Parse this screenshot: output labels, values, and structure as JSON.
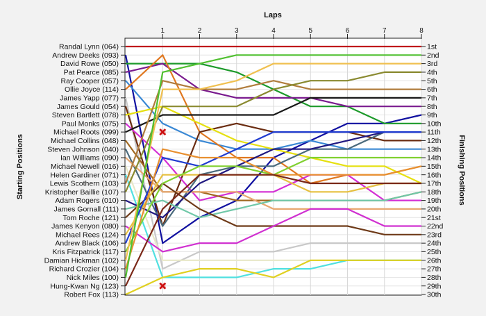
{
  "chart_data": {
    "type": "line",
    "title": "",
    "xlabel": "Laps",
    "ylabel_left": "Starting Positions",
    "ylabel_right": "Finishing Positions",
    "x": [
      0,
      1,
      2,
      3,
      4,
      5,
      6,
      7,
      8
    ],
    "x_tick_labels": [
      "1",
      "2",
      "3",
      "4",
      "5",
      "6",
      "7",
      "8"
    ],
    "ylim": [
      1,
      30
    ],
    "y_inverted": true,
    "grid": true,
    "starting_labels": [
      "Randal Lynn (064)",
      "Andrew Deeks (093)",
      "David Rowe (050)",
      "Pat Pearce (085)",
      "Ray Cooper (057)",
      "Ollie Joyce (114)",
      "James Yapp (077)",
      "James Gould (054)",
      "Steven Bartlett (078)",
      "Paul Monks (075)",
      "Michael Roots (099)",
      "Michael Collins (048)",
      "Steven Johnson (040)",
      "Ian Williams (090)",
      "Michael Newell (016)",
      "Helen Gardiner (071)",
      "Lewis Scothern (103)",
      "Kristopher Baillie (107)",
      "Adam Rogers (010)",
      "James Gornall (111)",
      "Tom Roche (121)",
      "James Kenyon (080)",
      "Michael Rees (124)",
      "Andrew Black (106)",
      "Kris Fitzpatrick (117)",
      "Damian Hickman (102)",
      "Richard Crozier (104)",
      "Nick Miles (100)",
      "Hung-Kwan Ng (123)",
      "Robert Fox (113)"
    ],
    "finishing_labels": [
      "1st",
      "2nd",
      "3rd",
      "4th",
      "5th",
      "6th",
      "7th",
      "8th",
      "9th",
      "10th",
      "11th",
      "12th",
      "13th",
      "14th",
      "15th",
      "16th",
      "17th",
      "18th",
      "19th",
      "20th",
      "21st",
      "22nd",
      "23rd",
      "24th",
      "25th",
      "26th",
      "27th",
      "28th",
      "29th",
      "30th"
    ],
    "series": [
      {
        "start": 1,
        "color": "#c0141c",
        "positions": [
          1,
          1,
          1,
          1,
          1,
          1,
          1,
          1,
          1
        ]
      },
      {
        "start": 2,
        "color": "#1010a0",
        "positions": [
          2,
          24,
          21,
          19,
          14,
          12,
          10,
          10,
          9
        ]
      },
      {
        "start": 3,
        "color": "#1c9a2a",
        "positions": [
          3,
          3,
          3,
          4,
          6,
          8,
          8,
          10,
          10
        ]
      },
      {
        "start": 4,
        "color": "#7a1a8e",
        "positions": [
          4,
          3,
          6,
          7,
          7,
          7,
          8,
          8,
          8
        ]
      },
      {
        "start": 5,
        "color": "#3a88d4",
        "positions": [
          5,
          10,
          12,
          13,
          13,
          12,
          13,
          13,
          13
        ]
      },
      {
        "start": 6,
        "color": "#e07820",
        "positions": [
          6,
          2,
          11,
          14,
          14,
          17,
          16,
          16,
          15
        ]
      },
      {
        "start": 7,
        "color": "#c8c8c8",
        "positions": [
          7,
          27,
          25,
          25,
          25,
          24,
          24,
          24,
          24
        ]
      },
      {
        "start": 8,
        "color": "#6a2c10",
        "positions": [
          8,
          22,
          11,
          10,
          11,
          11,
          11,
          12,
          12
        ]
      },
      {
        "start": 9,
        "color": "#e6e010",
        "positions": [
          9,
          8,
          10,
          12,
          13,
          14,
          15,
          15,
          17
        ]
      },
      {
        "start": 10,
        "color": "#d42ed4",
        "positions": [
          10,
          14,
          19,
          18,
          18,
          16,
          16,
          19,
          19
        ]
      },
      {
        "start": 11,
        "color": "#181818",
        "positions": [
          11,
          9,
          9,
          9,
          9,
          7,
          7,
          7,
          7
        ]
      },
      {
        "start": 12,
        "color": "#a06820",
        "positions": [
          12,
          18,
          18,
          19,
          19,
          19,
          19,
          19,
          18
        ]
      },
      {
        "start": 13,
        "color": "#4a6a7c",
        "positions": [
          13,
          22,
          16,
          15,
          15,
          13,
          13,
          11,
          11
        ]
      },
      {
        "start": 14,
        "color": "#e8a870",
        "positions": [
          14,
          18,
          18,
          18,
          20,
          20,
          20,
          20,
          20
        ]
      },
      {
        "start": 15,
        "color": "#e8e8c8",
        "positions": [
          15,
          26,
          26,
          26,
          26,
          26,
          26,
          26,
          26
        ]
      },
      {
        "start": 16,
        "color": "#50e0e0",
        "positions": [
          16,
          28,
          28,
          28,
          27,
          27,
          26,
          26,
          26
        ]
      },
      {
        "start": 17,
        "color": "#b07c3c",
        "positions": [
          17,
          5,
          6,
          6,
          5,
          6,
          6,
          6,
          6
        ]
      },
      {
        "start": 18,
        "color": "#8a8a30",
        "positions": [
          18,
          8,
          8,
          8,
          6,
          5,
          5,
          4,
          4
        ]
      },
      {
        "start": 19,
        "color": "#201880",
        "positions": [
          19,
          21,
          17,
          15,
          13,
          13,
          12,
          11,
          11
        ]
      },
      {
        "start": 20,
        "color": "#70c8a8",
        "positions": [
          20,
          19,
          21,
          20,
          19,
          19,
          19,
          19,
          18
        ]
      },
      {
        "start": 21,
        "color": "#6e3a18",
        "positions": [
          21,
          17,
          20,
          22,
          22,
          22,
          22,
          23,
          23
        ]
      },
      {
        "start": 22,
        "color": "#d030d0",
        "positions": [
          22,
          25,
          24,
          24,
          22,
          20,
          20,
          22,
          22
        ]
      },
      {
        "start": 23,
        "color": "#e6c040",
        "positions": [
          23,
          16,
          16,
          16,
          16,
          18,
          18,
          17,
          17
        ]
      },
      {
        "start": 24,
        "color": "#203cd0",
        "positions": [
          24,
          14,
          15,
          13,
          11,
          11,
          11,
          11,
          11
        ]
      },
      {
        "start": 25,
        "color": "#80d030",
        "positions": [
          25,
          17,
          15,
          15,
          16,
          14,
          14,
          14,
          14
        ]
      },
      {
        "start": 26,
        "color": "#f0c050",
        "positions": [
          26,
          6,
          6,
          5,
          3,
          3,
          3,
          3,
          3
        ]
      },
      {
        "start": 27,
        "color": "#e89030",
        "positions": [
          27,
          13,
          14,
          14,
          16,
          16,
          16,
          16,
          15
        ]
      },
      {
        "start": 28,
        "color": "#50c030",
        "positions": [
          28,
          4,
          3,
          2,
          2,
          2,
          2,
          2,
          2
        ]
      },
      {
        "start": 29,
        "color": "#7a2818",
        "positions": [
          29,
          20,
          16,
          16,
          16,
          17,
          17,
          17,
          17
        ]
      },
      {
        "start": 30,
        "color": "#e0d020",
        "positions": [
          30,
          28,
          27,
          27,
          28,
          26,
          26,
          26,
          26
        ]
      }
    ],
    "retired_markers": [
      {
        "lap": 1,
        "position": 11,
        "color": "#cc1010"
      },
      {
        "lap": 1,
        "position": 29,
        "color": "#cc1010"
      }
    ]
  }
}
